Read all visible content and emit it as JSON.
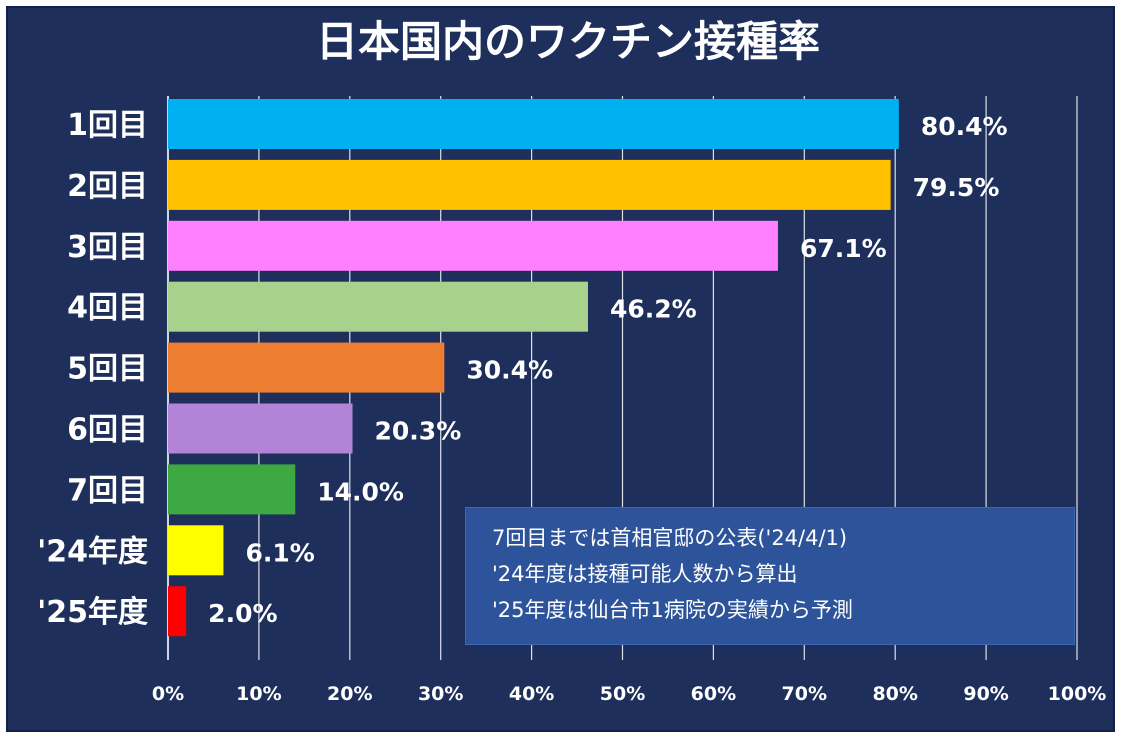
{
  "chart_data": {
    "type": "bar",
    "orientation": "horizontal",
    "title": "日本国内のワクチン接種率",
    "categories": [
      "1回目",
      "2回目",
      "3回目",
      "4回目",
      "5回目",
      "6回目",
      "7回目",
      "'24年度",
      "'25年度"
    ],
    "values": [
      80.4,
      79.5,
      67.1,
      46.2,
      30.4,
      20.3,
      14.0,
      6.1,
      2.0
    ],
    "value_labels": [
      "80.4%",
      "79.5%",
      "67.1%",
      "46.2%",
      "30.4%",
      "20.3%",
      "14.0%",
      "6.1%",
      "2.0%"
    ],
    "colors": [
      "#00b0f0",
      "#ffc000",
      "#ff80ff",
      "#a9d18e",
      "#ed7d31",
      "#b383d8",
      "#3ea843",
      "#ffff00",
      "#ff0000"
    ],
    "xlim": [
      0,
      100
    ],
    "xticks": [
      "0%",
      "10%",
      "20%",
      "30%",
      "40%",
      "50%",
      "60%",
      "70%",
      "80%",
      "90%",
      "100%"
    ],
    "grid": true,
    "background": "#1e2f5c",
    "annotation": [
      "7回目までは首相官邸の公表('24/4/1)",
      "'24年度は接種可能人数から算出",
      "'25年度は仙台市1病院の実績から予測"
    ]
  }
}
